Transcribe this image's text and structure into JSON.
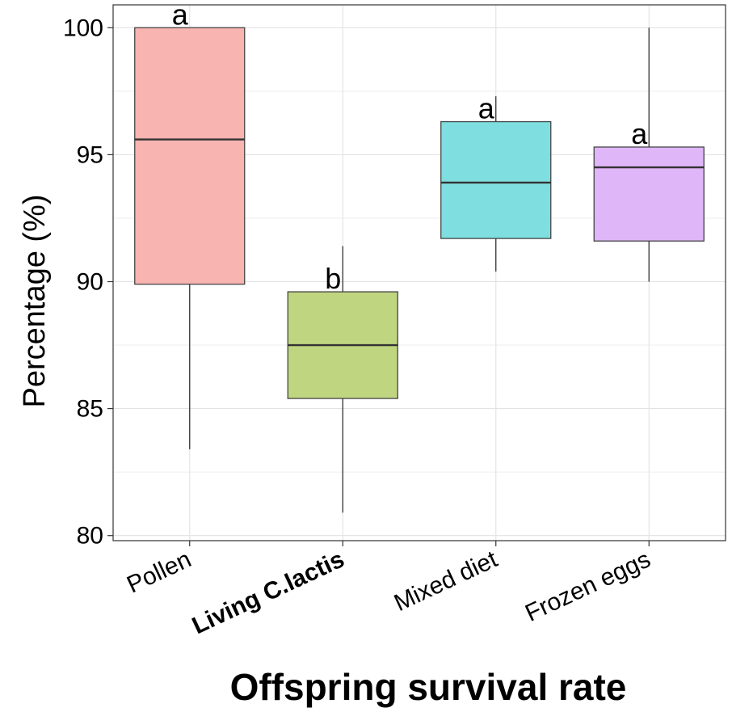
{
  "chart_data": {
    "type": "box",
    "title": "Offspring survival rate",
    "ylabel": "Percentage (%)",
    "xlabel": "",
    "ylim": [
      79.8,
      100.9
    ],
    "yticks": [
      80,
      85,
      90,
      95,
      100
    ],
    "grid": true,
    "categories": [
      "Pollen",
      "Living C.lactis",
      "Mixed diet",
      "Frozen eggs"
    ],
    "boxes": [
      {
        "category": "Pollen",
        "min": 83.4,
        "q1": 89.9,
        "median": 95.6,
        "q3": 100,
        "max": 100,
        "label": "a",
        "color": "#f8b4b0",
        "bold_label": false
      },
      {
        "category": "Living C.lactis",
        "min": 80.9,
        "q1": 85.4,
        "median": 87.5,
        "q3": 89.6,
        "max": 91.4,
        "label": "b",
        "color": "#c0d580",
        "bold_label": true
      },
      {
        "category": "Mixed diet",
        "min": 90.4,
        "q1": 91.7,
        "median": 93.9,
        "q3": 96.3,
        "max": 97.3,
        "label": "a",
        "color": "#7edee0",
        "bold_label": false
      },
      {
        "category": "Frozen eggs",
        "min": 90,
        "q1": 91.6,
        "median": 94.5,
        "q3": 95.3,
        "max": 100,
        "label": "a",
        "color": "#dfb6f8",
        "bold_label": false
      }
    ]
  }
}
